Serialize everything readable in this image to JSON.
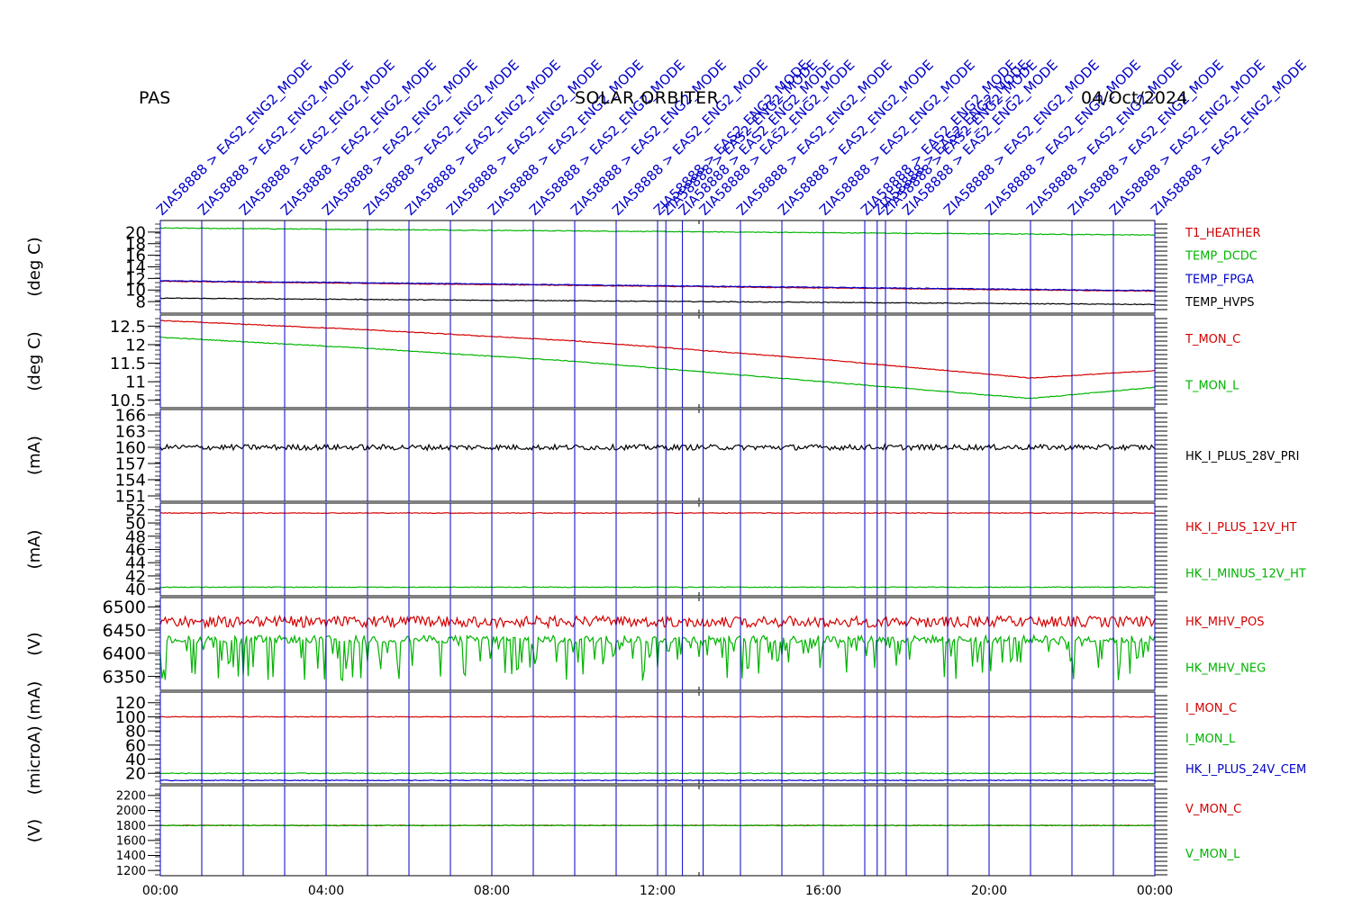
{
  "header": {
    "left": "PAS",
    "center": "SOLAR ORBITER",
    "right": "04/Oct/2024"
  },
  "colors": {
    "red": "#d40000",
    "green": "#00b400",
    "blue": "#0000c8",
    "black": "#000000"
  },
  "chart_data": {
    "type": "line",
    "x_range": [
      "00:00",
      "00:00"
    ],
    "x_ticks": [
      "00:00",
      "04:00",
      "08:00",
      "12:00",
      "16:00",
      "20:00",
      "00:00"
    ],
    "events": {
      "label": "ZIA58888 > EAS2_ENG2_MODE",
      "times_h": [
        0,
        1,
        2,
        3,
        4,
        5,
        6,
        7,
        8,
        9,
        10,
        11,
        12,
        12.2,
        12.6,
        13.1,
        14,
        15,
        16,
        17,
        17.3,
        17.5,
        18,
        19,
        20,
        21,
        22,
        23,
        24
      ]
    },
    "panels": [
      {
        "ylabel": "(deg C)",
        "yticks": [
          8,
          10,
          12,
          14,
          16,
          18,
          20
        ],
        "ylim": [
          6,
          22
        ],
        "series": [
          {
            "name": "T1_HEATHER",
            "color": "red",
            "points": [
              [
                0,
                11.5
              ],
              [
                24,
                9.8
              ]
            ]
          },
          {
            "name": "TEMP_DCDC",
            "color": "green",
            "points": [
              [
                0,
                20.7
              ],
              [
                24,
                19.5
              ]
            ]
          },
          {
            "name": "TEMP_FPGA",
            "color": "blue",
            "points": [
              [
                0,
                11.6
              ],
              [
                24,
                9.9
              ]
            ]
          },
          {
            "name": "TEMP_HVPS",
            "color": "black",
            "points": [
              [
                0,
                8.6
              ],
              [
                24,
                7.5
              ]
            ]
          }
        ]
      },
      {
        "ylabel": "(deg C)",
        "yticks": [
          10.5,
          11.0,
          11.5,
          12.0,
          12.5
        ],
        "ylim": [
          10.3,
          12.8
        ],
        "series": [
          {
            "name": "T_MON_C",
            "color": "red",
            "points": [
              [
                0,
                12.65
              ],
              [
                5,
                12.4
              ],
              [
                10,
                12.1
              ],
              [
                16,
                11.6
              ],
              [
                21,
                11.1
              ],
              [
                24,
                11.3
              ]
            ]
          },
          {
            "name": "T_MON_L",
            "color": "green",
            "points": [
              [
                0,
                12.2
              ],
              [
                5,
                11.9
              ],
              [
                10,
                11.55
              ],
              [
                16,
                11.0
              ],
              [
                21,
                10.55
              ],
              [
                24,
                10.85
              ]
            ]
          }
        ]
      },
      {
        "ylabel": "(mA)",
        "yticks": [
          151,
          154,
          157,
          160,
          163,
          166
        ],
        "ylim": [
          150,
          167
        ],
        "series": [
          {
            "name": "HK_I_PLUS_28V_PRI",
            "color": "black",
            "points": [
              [
                0,
                160
              ],
              [
                12,
                160
              ],
              [
                24,
                160
              ]
            ]
          }
        ]
      },
      {
        "ylabel": "(mA)",
        "yticks": [
          40,
          42,
          44,
          46,
          48,
          50,
          52
        ],
        "ylim": [
          39,
          53
        ],
        "series": [
          {
            "name": "HK_I_PLUS_12V_HT",
            "color": "red",
            "points": [
              [
                0,
                51.5
              ],
              [
                24,
                51.5
              ]
            ]
          },
          {
            "name": "HK_I_MINUS_12V_HT",
            "color": "green",
            "points": [
              [
                0,
                40.3
              ],
              [
                24,
                40.3
              ]
            ]
          }
        ]
      },
      {
        "ylabel": "(V)",
        "yticks": [
          6350,
          6400,
          6450,
          6500
        ],
        "ylim": [
          6320,
          6520
        ],
        "series": [
          {
            "name": "HK_MHV_POS",
            "color": "red",
            "points": [
              [
                0,
                6480
              ],
              [
                24,
                6480
              ]
            ]
          },
          {
            "name": "HK_MHV_NEG",
            "color": "green",
            "points": [
              [
                0,
                6430
              ],
              [
                24,
                6430
              ]
            ]
          }
        ]
      },
      {
        "ylabel": "(microA) (mA)",
        "yticks": [
          20,
          40,
          60,
          80,
          100,
          120
        ],
        "ylim": [
          5,
          135
        ],
        "series": [
          {
            "name": "I_MON_C",
            "color": "red",
            "points": [
              [
                0,
                100
              ],
              [
                24,
                100
              ]
            ]
          },
          {
            "name": "I_MON_L",
            "color": "green",
            "points": [
              [
                0,
                20
              ],
              [
                24,
                20
              ]
            ]
          },
          {
            "name": "HK_I_PLUS_24V_CEM",
            "color": "blue",
            "points": [
              [
                0,
                10
              ],
              [
                24,
                10
              ]
            ]
          }
        ]
      },
      {
        "ylabel": "(V)",
        "yticks": [
          1200,
          1400,
          1600,
          1800,
          2000,
          2200
        ],
        "ylim": [
          1130,
          2330
        ],
        "series": [
          {
            "name": "V_MON_C",
            "color": "red",
            "points": [
              [
                0,
                1800
              ],
              [
                24,
                1800
              ]
            ]
          },
          {
            "name": "V_MON_L",
            "color": "green",
            "points": [
              [
                0,
                1800
              ],
              [
                24,
                1800
              ]
            ]
          }
        ]
      }
    ]
  }
}
